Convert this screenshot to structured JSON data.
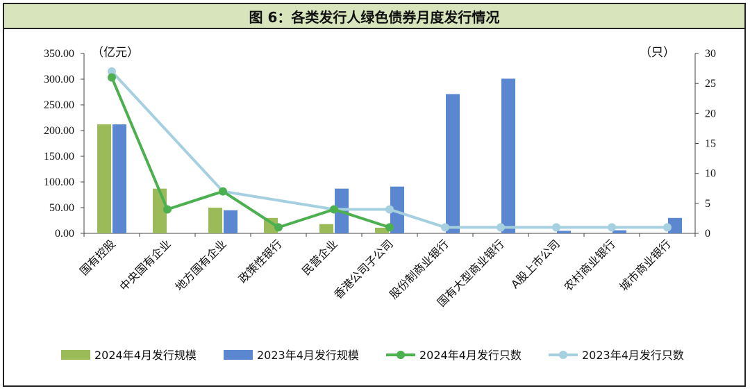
{
  "title": "图 6：各类发行人绿色债券月度发行情况",
  "chart_data": {
    "type": "bar",
    "left_unit": "（亿元）",
    "right_unit": "（只）",
    "categories": [
      "国有控股",
      "中央国有企业",
      "地方国有企业",
      "政策性银行",
      "民营企业",
      "香港公司子公司",
      "股份制商业银行",
      "国有大型商业银行",
      "A股上市公司",
      "农村商业银行",
      "城市商业银行"
    ],
    "left_axis": {
      "ylim": [
        0,
        350
      ],
      "ticks": [
        "0.00",
        "50.00",
        "100.00",
        "150.00",
        "200.00",
        "250.00",
        "300.00",
        "350.00"
      ]
    },
    "right_axis": {
      "ylim": [
        0,
        30
      ],
      "ticks": [
        "0",
        "5",
        "10",
        "15",
        "20",
        "25",
        "30"
      ]
    },
    "series": [
      {
        "name": "2024年4月发行规模",
        "kind": "bar",
        "axis": "left",
        "color": "#9bbb59",
        "values": [
          212,
          87,
          50,
          30,
          18,
          11,
          0,
          0,
          0,
          0,
          0
        ]
      },
      {
        "name": "2023年4月发行规模",
        "kind": "bar",
        "axis": "left",
        "color": "#5b87d0",
        "values": [
          212,
          0,
          45,
          0,
          87,
          91,
          271,
          301,
          5,
          6,
          30
        ]
      },
      {
        "name": "2024年4月发行只数",
        "kind": "line",
        "axis": "right",
        "color": "#4caf50",
        "values": [
          26,
          4,
          7,
          1,
          4,
          1,
          null,
          null,
          null,
          null,
          null
        ]
      },
      {
        "name": "2023年4月发行只数",
        "kind": "line",
        "axis": "right",
        "color": "#a6d0e0",
        "values": [
          27,
          null,
          7,
          null,
          4,
          4,
          1,
          1,
          1,
          1,
          1
        ]
      }
    ],
    "legend_position": "bottom",
    "grid": false
  }
}
